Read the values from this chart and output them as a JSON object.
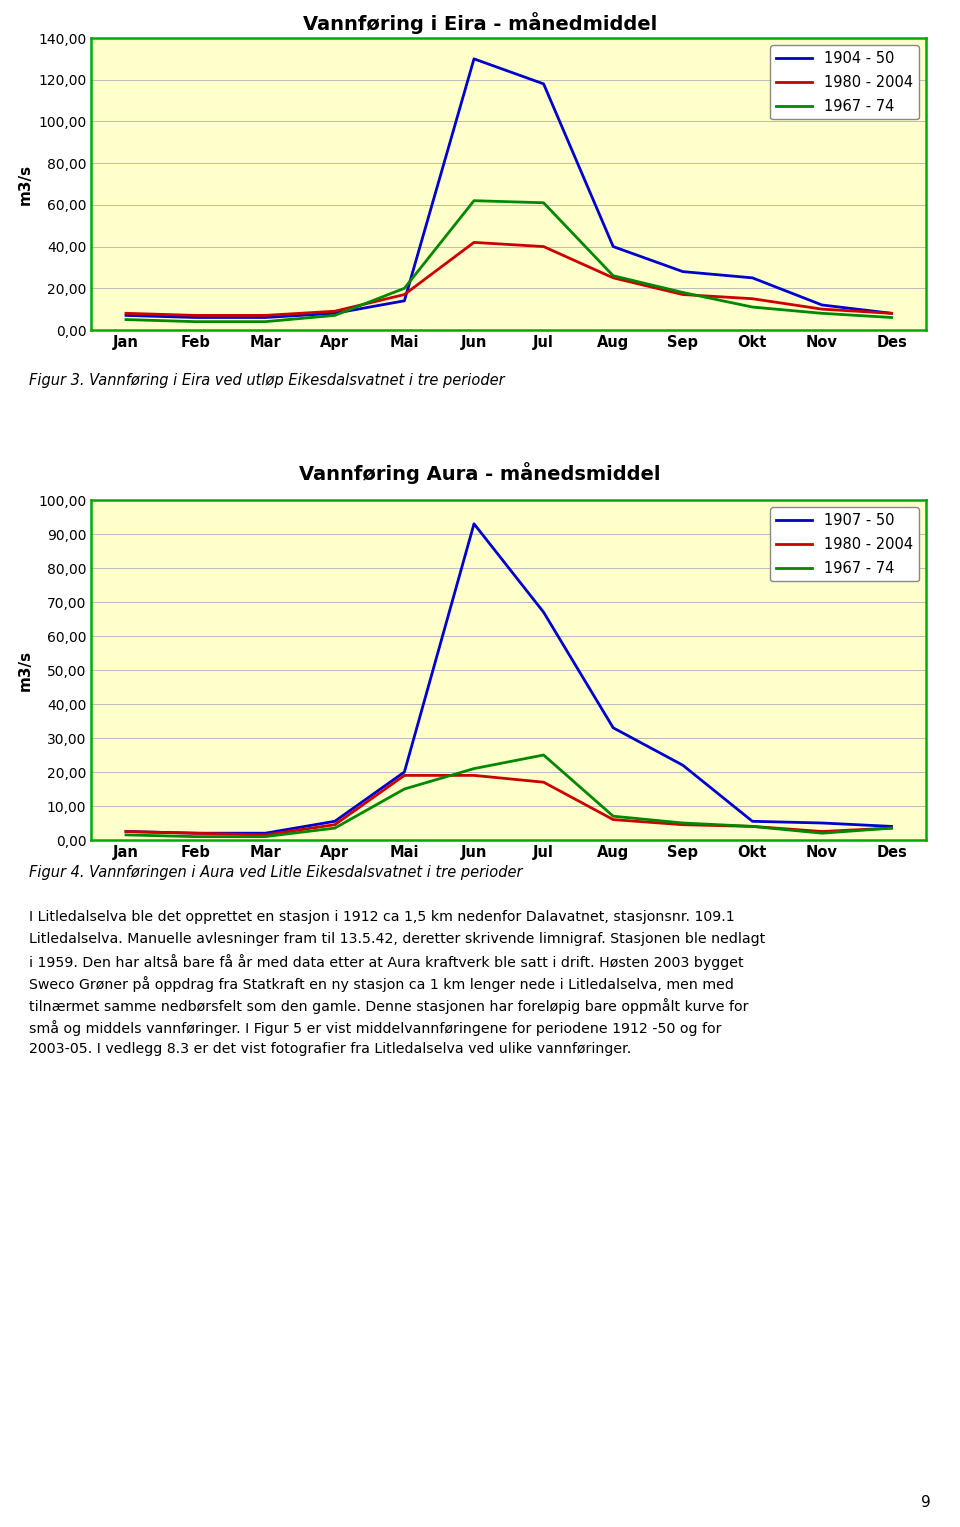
{
  "chart1": {
    "title": "Vannføring i Eira - månedmiddel",
    "ylabel": "m3/s",
    "months": [
      "Jan",
      "Feb",
      "Mar",
      "Apr",
      "Mai",
      "Jun",
      "Jul",
      "Aug",
      "Sep",
      "Okt",
      "Nov",
      "Des"
    ],
    "series": [
      {
        "label": "1904 - 50",
        "color": "#0000CC",
        "values": [
          7,
          6,
          6,
          8,
          14,
          130,
          118,
          40,
          28,
          25,
          12,
          8
        ]
      },
      {
        "label": "1980 - 2004",
        "color": "#CC0000",
        "values": [
          8,
          7,
          7,
          9,
          17,
          42,
          40,
          25,
          17,
          15,
          10,
          8
        ]
      },
      {
        "label": "1967 - 74",
        "color": "#008800",
        "values": [
          5,
          4,
          4,
          7,
          20,
          62,
          61,
          26,
          18,
          11,
          8,
          6
        ]
      }
    ],
    "ylim": [
      0,
      140
    ],
    "yticks": [
      0,
      20,
      40,
      60,
      80,
      100,
      120,
      140
    ],
    "ytick_labels": [
      "0,00",
      "20,00",
      "40,00",
      "60,00",
      "80,00",
      "100,00",
      "120,00",
      "140,00"
    ],
    "bg_color": "#FFFFCC",
    "border_color": "#00AA00",
    "legend_pos": "upper right"
  },
  "chart2": {
    "title": "Vannføring Aura - månedsmiddel",
    "ylabel": "m3/s",
    "months": [
      "Jan",
      "Feb",
      "Mar",
      "Apr",
      "Mai",
      "Jun",
      "Jul",
      "Aug",
      "Sep",
      "Okt",
      "Nov",
      "Des"
    ],
    "series": [
      {
        "label": "1907 - 50",
        "color": "#0000CC",
        "values": [
          2.5,
          2.0,
          2.0,
          5.5,
          20,
          93,
          67,
          33,
          22,
          5.5,
          5.0,
          4.0
        ]
      },
      {
        "label": "1980 - 2004",
        "color": "#CC0000",
        "values": [
          2.5,
          2.0,
          1.5,
          4.5,
          19,
          19,
          17,
          6,
          4.5,
          4.0,
          2.5,
          3.5
        ]
      },
      {
        "label": "1967 - 74",
        "color": "#008800",
        "values": [
          1.5,
          1.0,
          1.0,
          3.5,
          15,
          21,
          25,
          7,
          5.0,
          4.0,
          2.0,
          3.5
        ]
      }
    ],
    "ylim": [
      0,
      100
    ],
    "yticks": [
      0,
      10,
      20,
      30,
      40,
      50,
      60,
      70,
      80,
      90,
      100
    ],
    "ytick_labels": [
      "0,00",
      "10,00",
      "20,00",
      "30,00",
      "40,00",
      "50,00",
      "60,00",
      "70,00",
      "80,00",
      "90,00",
      "100,00"
    ],
    "bg_color": "#FFFFCC",
    "border_color": "#00AA00",
    "legend_pos": "upper right"
  },
  "figur3_caption": "Figur 3. Vannføring i Eira ved utløp Eikesdalsvatnet i tre perioder",
  "figur4_caption": "Figur 4. Vannføringen i Aura ved Litle Eikesdalsvatnet i tre perioder",
  "body_text": [
    "I Litledalselva ble det opprettet en stasjon i 1912 ca 1,5 km nedenfor Dalavatnet, stasjonsnr. 109.1",
    "Litledalselva. Manuelle avlesninger fram til 13.5.42, deretter skrivende limnigraf. Stasjonen ble nedlagt",
    "i 1959. Den har altså bare få år med data etter at Aura kraftverk ble satt i drift. Høsten 2003 bygget",
    "Sweco Grøner på oppdrag fra Statkraft en ny stasjon ca 1 km lenger nede i Litledalselva, men med",
    "tilnærmet samme nedbørsfelt som den gamle. Denne stasjonen har foreløpig bare oppmålt kurve for",
    "små og middels vannføringer. I Figur 5 er vist middelvannføringene for periodene 1912 -50 og for",
    "2003-05. I vedlegg 8.3 er det vist fotografier fra Litledalselva ved ulike vannføringer."
  ],
  "page_number": "9",
  "bg_page": "#FFFFFF",
  "line_width": 2.0
}
